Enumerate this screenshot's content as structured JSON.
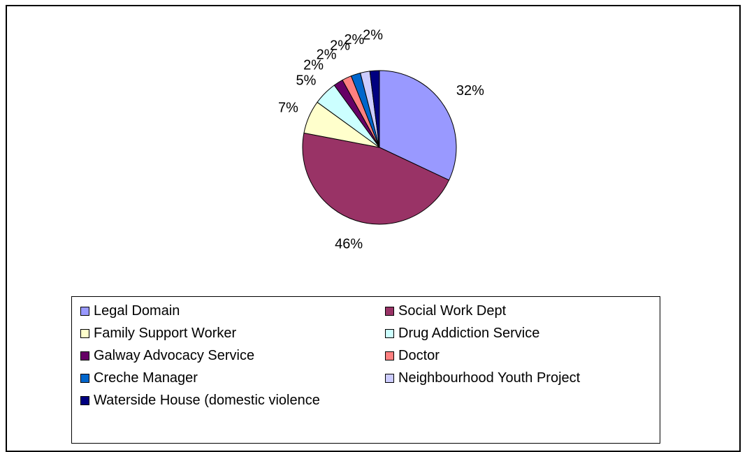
{
  "chart_data": {
    "type": "pie",
    "slices": [
      {
        "label": "Legal Domain",
        "value": 32,
        "value_label": "32%",
        "color": "#9999ff"
      },
      {
        "label": "Social Work Dept",
        "value": 46,
        "value_label": "46%",
        "color": "#993366"
      },
      {
        "label": "Family Support Worker",
        "value": 7,
        "value_label": "7%",
        "color": "#ffffcc"
      },
      {
        "label": "Drug Addiction Service",
        "value": 5,
        "value_label": "5%",
        "color": "#ccffff"
      },
      {
        "label": "Galway Advocacy Service",
        "value": 2,
        "value_label": "2%",
        "color": "#660066"
      },
      {
        "label": "Doctor",
        "value": 2,
        "value_label": "2%",
        "color": "#ff8080"
      },
      {
        "label": "Creche Manager",
        "value": 2,
        "value_label": "2%",
        "color": "#0066cc"
      },
      {
        "label": "Neighbourhood Youth Project",
        "value": 2,
        "value_label": "2%",
        "color": "#ccccff"
      },
      {
        "label": "Waterside House (domestic violence",
        "value": 2,
        "value_label": "2%",
        "color": "#000080"
      }
    ],
    "legend_position": "bottom"
  }
}
